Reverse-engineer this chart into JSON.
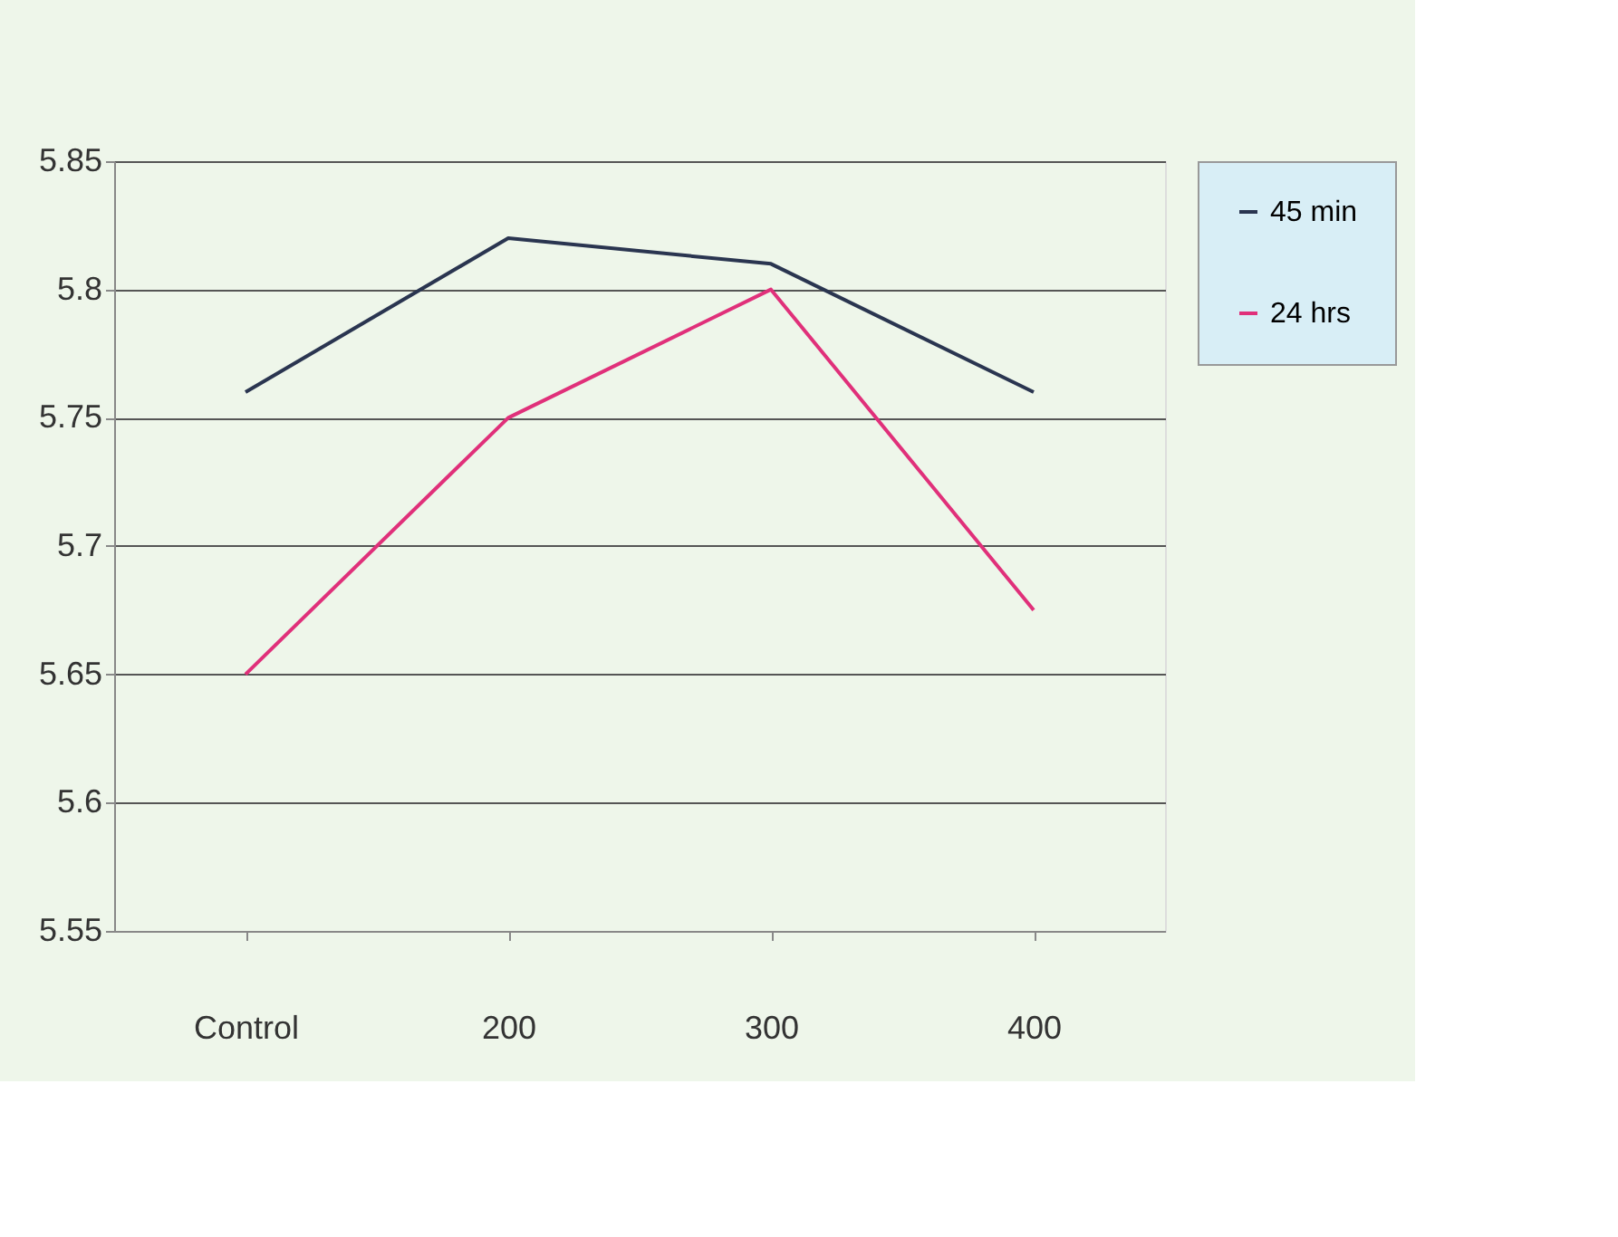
{
  "chart_data": {
    "type": "line",
    "categories": [
      "Control",
      "200",
      "300",
      "400"
    ],
    "series": [
      {
        "name": "45 min",
        "color": "#2a3550",
        "values": [
          5.76,
          5.82,
          5.81,
          5.76
        ]
      },
      {
        "name": "24 hrs",
        "color": "#e0307a",
        "values": [
          5.65,
          5.75,
          5.8,
          5.675
        ]
      }
    ],
    "ylim": [
      5.55,
      5.85
    ],
    "yticks": [
      5.55,
      5.6,
      5.65,
      5.7,
      5.75,
      5.8,
      5.85
    ],
    "grid": "y",
    "legend": "right",
    "marker": "none",
    "line_style": "solid"
  }
}
